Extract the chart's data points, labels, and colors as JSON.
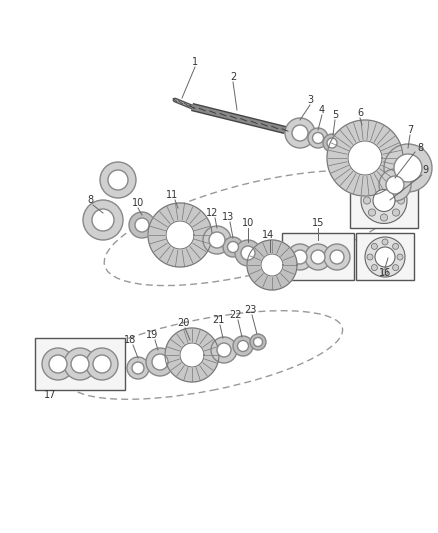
{
  "bg_color": "#ffffff",
  "line_color": "#555555",
  "label_color": "#333333",
  "label_fontsize": 7.0,
  "fig_w": 4.38,
  "fig_h": 5.33,
  "dpi": 100,
  "xlim": [
    0,
    438
  ],
  "ylim": [
    0,
    533
  ]
}
